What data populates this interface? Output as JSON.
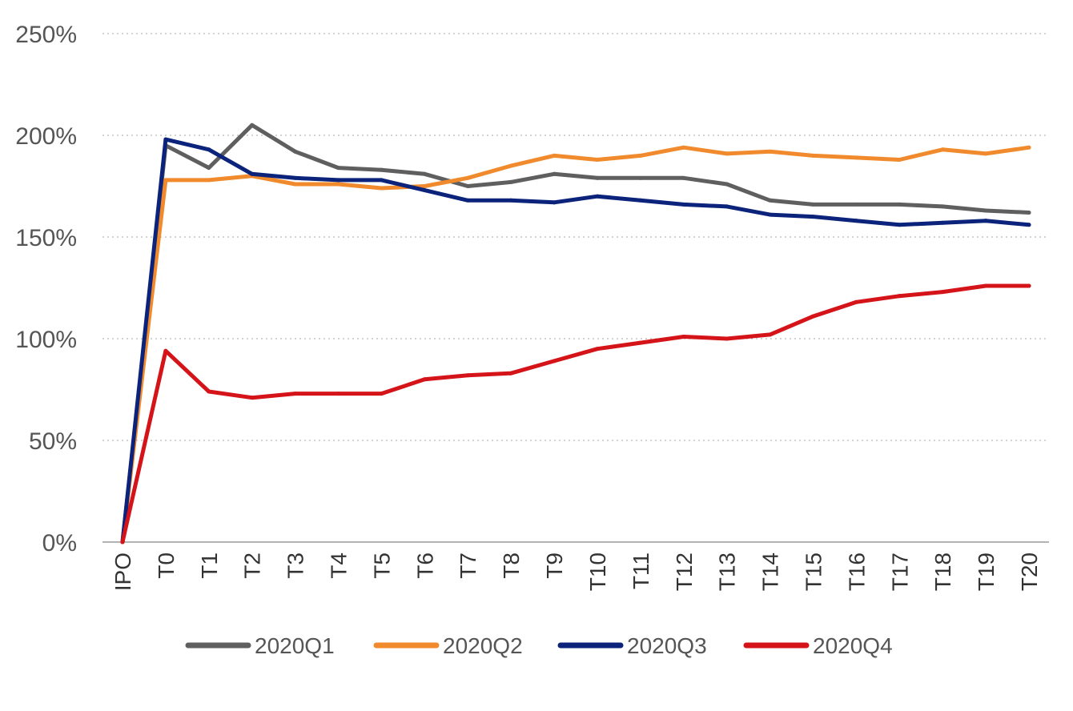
{
  "chart_data": {
    "type": "line",
    "title": "",
    "xlabel": "",
    "ylabel": "",
    "categories": [
      "IPO",
      "T0",
      "T1",
      "T2",
      "T3",
      "T4",
      "T5",
      "T6",
      "T7",
      "T8",
      "T9",
      "T10",
      "T11",
      "T12",
      "T13",
      "T14",
      "T15",
      "T16",
      "T17",
      "T18",
      "T19",
      "T20"
    ],
    "ylim": [
      0,
      250
    ],
    "yticks": [
      0,
      50,
      100,
      150,
      200,
      250
    ],
    "ytick_labels": [
      "0%",
      "50%",
      "100%",
      "150%",
      "200%",
      "250%"
    ],
    "grid": true,
    "legend_position": "bottom",
    "series": [
      {
        "name": "2020Q1",
        "color": "#5f5f5f",
        "values": [
          0,
          195,
          184,
          205,
          192,
          184,
          183,
          181,
          175,
          177,
          181,
          179,
          179,
          179,
          176,
          168,
          166,
          166,
          166,
          165,
          163,
          162
        ]
      },
      {
        "name": "2020Q2",
        "color": "#f08a2c",
        "values": [
          0,
          178,
          178,
          180,
          176,
          176,
          174,
          175,
          179,
          185,
          190,
          188,
          190,
          194,
          191,
          192,
          190,
          189,
          188,
          193,
          191,
          194
        ]
      },
      {
        "name": "2020Q3",
        "color": "#0b237a",
        "values": [
          0,
          198,
          193,
          181,
          179,
          178,
          178,
          173,
          168,
          168,
          167,
          170,
          168,
          166,
          165,
          161,
          160,
          158,
          156,
          157,
          158,
          156
        ]
      },
      {
        "name": "2020Q4",
        "color": "#d41418",
        "values": [
          0,
          94,
          74,
          71,
          73,
          73,
          73,
          80,
          82,
          83,
          89,
          95,
          98,
          101,
          100,
          102,
          111,
          118,
          121,
          123,
          126,
          126
        ]
      }
    ]
  }
}
